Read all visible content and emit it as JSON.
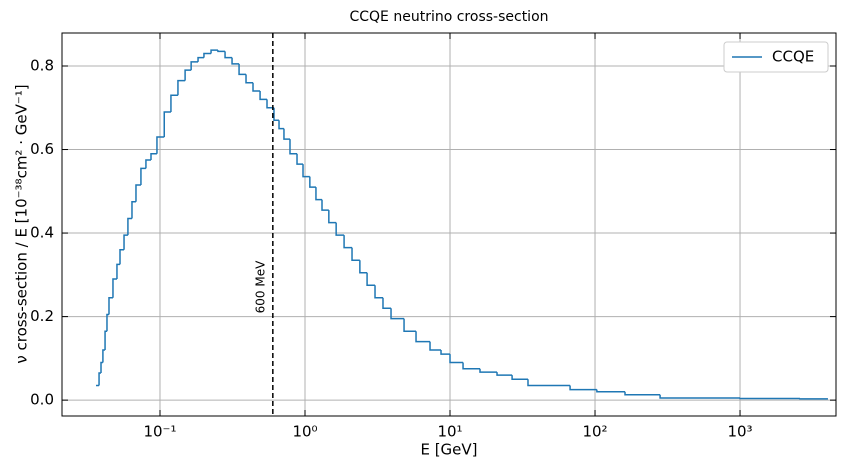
{
  "chart_data": {
    "type": "histogram",
    "title": "CCQE neutrino cross-section",
    "xlabel": "E [GeV]",
    "ylabel": "ν cross-section / E [10⁻³⁸cm² · GeV⁻¹]",
    "log_x": true,
    "grid": true,
    "legend": "upper right",
    "xlim": [
      0.0211,
      4590
    ],
    "ylim": [
      -0.038,
      0.879
    ],
    "xticks": [
      {
        "value": 0.1,
        "label": "10⁻¹"
      },
      {
        "value": 1,
        "label": "10⁰"
      },
      {
        "value": 10,
        "label": "10¹"
      },
      {
        "value": 100,
        "label": "10²"
      },
      {
        "value": 1000,
        "label": "10³"
      }
    ],
    "yticks": [
      {
        "value": 0,
        "label": "0.0"
      },
      0.2,
      0.4,
      0.6,
      0.8
    ],
    "bins": [
      0.0362,
      0.038,
      0.0392,
      0.0404,
      0.0418,
      0.0431,
      0.0445,
      0.0474,
      0.0505,
      0.053,
      0.0565,
      0.0601,
      0.0641,
      0.0683,
      0.0739,
      0.08,
      0.0867,
      0.0953,
      0.107,
      0.119,
      0.133,
      0.149,
      0.164,
      0.183,
      0.201,
      0.225,
      0.251,
      0.281,
      0.314,
      0.351,
      0.392,
      0.438,
      0.49,
      0.547,
      0.611,
      0.662,
      0.716,
      0.788,
      0.881,
      0.969,
      1.08,
      1.19,
      1.31,
      1.46,
      1.64,
      1.86,
      2.11,
      2.39,
      2.68,
      3.04,
      3.45,
      3.92,
      4.82,
      5.83,
      7.28,
      8.67,
      10.0,
      12.3,
      16.1,
      21.1,
      26.8,
      34.5,
      67.3,
      103,
      161,
      281,
      1000,
      2590,
      4040
    ],
    "series": [
      {
        "name": "CCQE",
        "color": "#1f77b4",
        "values": [
          0.035,
          0.065,
          0.09,
          0.12,
          0.165,
          0.205,
          0.245,
          0.29,
          0.325,
          0.36,
          0.395,
          0.435,
          0.475,
          0.515,
          0.555,
          0.575,
          0.59,
          0.63,
          0.69,
          0.73,
          0.765,
          0.79,
          0.81,
          0.82,
          0.83,
          0.838,
          0.835,
          0.82,
          0.805,
          0.78,
          0.76,
          0.74,
          0.72,
          0.7,
          0.67,
          0.65,
          0.625,
          0.59,
          0.565,
          0.535,
          0.51,
          0.48,
          0.455,
          0.425,
          0.395,
          0.365,
          0.335,
          0.305,
          0.275,
          0.245,
          0.22,
          0.195,
          0.165,
          0.14,
          0.12,
          0.11,
          0.09,
          0.075,
          0.067,
          0.06,
          0.05,
          0.035,
          0.025,
          0.02,
          0.013,
          0.005,
          0.004,
          0.003
        ]
      }
    ],
    "vline": {
      "x": 0.6,
      "label": "600 MeV",
      "color": "#000000"
    }
  }
}
